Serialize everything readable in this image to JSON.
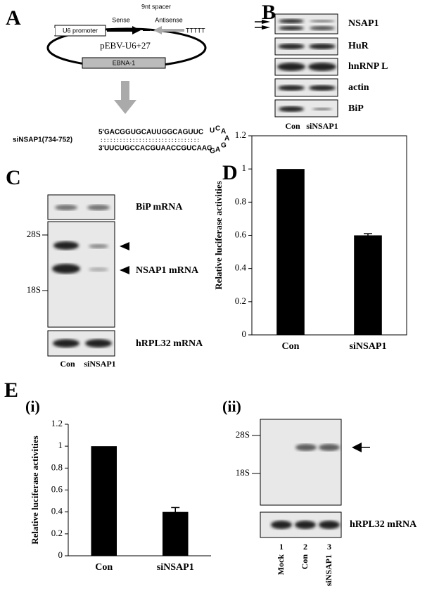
{
  "panels": {
    "a": {
      "label": "A",
      "spacer": "9nt spacer",
      "sense": "Sense",
      "antisense": "Antisense",
      "terminator": "TTTTT",
      "promoter": "U6 promoter",
      "plasmid": "pEBV-U6+27",
      "gene": "EBNA-1",
      "sirna": "siNSAP1(734-752)",
      "top_strand": "5'GACGGUGCAUUGGCAGUUC",
      "bottom_strand": "3'UUCUGCCACGUAACCGUCAAG",
      "loop": [
        "U",
        "C",
        "A",
        "A",
        "G",
        "A",
        "G"
      ]
    },
    "b": {
      "label": "B",
      "bands": [
        "NSAP1",
        "HuR",
        "hnRNP L",
        "actin",
        "BiP"
      ],
      "lanes": [
        "Con",
        "siNSAP1"
      ]
    },
    "c": {
      "label": "C",
      "bip": "BiP mRNA",
      "markers": [
        "28S",
        "18S"
      ],
      "nsap1": "NSAP1 mRNA",
      "rpl32": "hRPL32 mRNA",
      "lanes": [
        "Con",
        "siNSAP1"
      ]
    },
    "d": {
      "label": "D"
    },
    "e": {
      "label": "E",
      "sub_i": "(i)",
      "sub_ii": "(ii)",
      "markers": [
        "28S",
        "18S"
      ],
      "rpl32": "hRPL32 mRNA",
      "lanes": [
        {
          "number": "1",
          "name": "Mock"
        },
        {
          "number": "2",
          "name": "Con"
        },
        {
          "number": "3",
          "name": "siNSAP1"
        }
      ]
    }
  },
  "chart_data": [
    {
      "type": "bar",
      "y_label": "Relative luciferase activities",
      "categories": [
        "Con",
        "siNSAP1"
      ],
      "values": [
        1,
        0.6
      ],
      "errors": [
        null,
        0.01
      ],
      "color": "#000000",
      "ylim": [
        0,
        1.2
      ],
      "yticks": [
        0,
        0.2,
        0.4,
        0.6,
        0.8,
        1,
        1.2
      ],
      "frame": "box"
    },
    {
      "type": "bar",
      "y_label": "Relative luciferase activities",
      "categories": [
        "Con",
        "siNSAP1"
      ],
      "values": [
        1,
        0.4
      ],
      "errors": [
        null,
        0.04
      ],
      "color": "#000000",
      "ylim": [
        0,
        1.2
      ],
      "yticks": [
        0,
        0.2,
        0.4,
        0.6,
        0.8,
        1,
        1.2
      ],
      "frame": "axes"
    }
  ]
}
